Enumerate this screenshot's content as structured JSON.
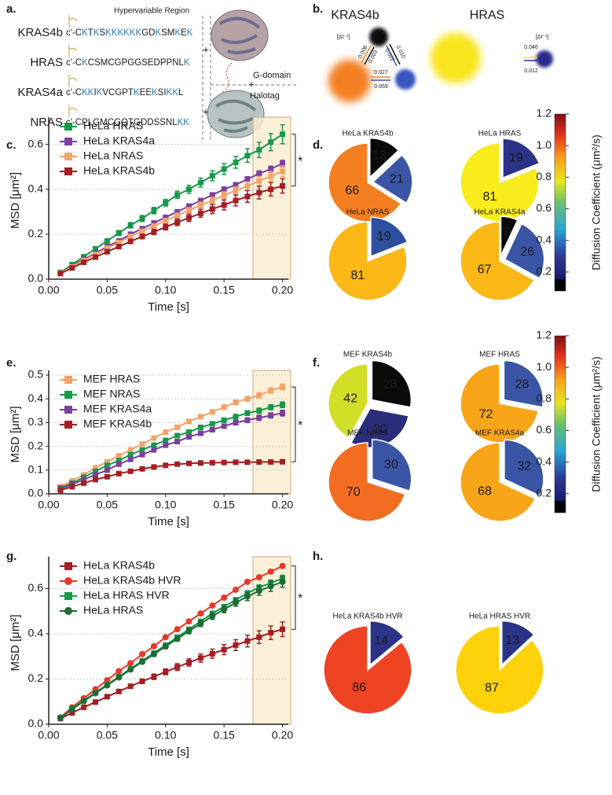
{
  "panel_labels": [
    "a.",
    "b.",
    "c.",
    "d.",
    "e.",
    "f.",
    "g.",
    "h."
  ],
  "panel_a": {
    "region_label": "Hypervariable Region",
    "rows": [
      {
        "name": "KRAS4b",
        "sequence": "c'-CKTKSKKKKKKGDKSMKEK"
      },
      {
        "name": "HRAS",
        "sequence": "c'-CKCSMCGPGGSEDPPNLK"
      },
      {
        "name": "KRAS4a",
        "sequence": "c'-CKKIKVCGPTKEEKSIKKL"
      },
      {
        "name": "NRAS",
        "sequence": "c'-CPLGMCGQTGDDSSNLKK"
      }
    ],
    "domains": [
      "G-domain",
      "Halotag"
    ]
  },
  "panel_b": {
    "titles": [
      "KRAS4b",
      "HRAS"
    ],
    "unit": "[Δt⁻¹]",
    "rates": [
      "0.008",
      "0.003",
      "0.022",
      "0.010",
      "0.027",
      "0.059",
      "0.046",
      "0.012"
    ]
  },
  "chart_data": [
    {
      "type": "line",
      "xlabel": "Time [s]",
      "ylabel": "MSD [μm²]",
      "annotation": "*",
      "grid": true,
      "xlim": [
        0,
        0.205
      ],
      "xticks": [
        {
          "value": 0,
          "label": "0.00"
        },
        {
          "value": 0.05,
          "label": "0.05"
        },
        {
          "value": 0.1,
          "label": "0.10"
        },
        {
          "value": 0.15,
          "label": "0.15"
        },
        {
          "value": 0.2,
          "label": "0.20"
        }
      ],
      "ylim": [
        0,
        0.7
      ],
      "yticks": [
        {
          "value": 0,
          "label": "0.0"
        },
        0.2,
        0.4,
        0.6
      ],
      "x": [
        0.01,
        0.02,
        0.03,
        0.04,
        0.05,
        0.06,
        0.07,
        0.08,
        0.09,
        0.1,
        0.11,
        0.12,
        0.13,
        0.14,
        0.15,
        0.16,
        0.17,
        0.18,
        0.19,
        0.2
      ],
      "series": [
        {
          "name": "HeLa HRAS",
          "color": "#16994a",
          "marker": "square",
          "values": [
            0.03,
            0.065,
            0.1,
            0.135,
            0.17,
            0.205,
            0.24,
            0.27,
            0.305,
            0.34,
            0.375,
            0.4,
            0.43,
            0.46,
            0.49,
            0.52,
            0.55,
            0.575,
            0.61,
            0.645
          ],
          "errors": [
            0.005,
            0.006,
            0.008,
            0.009,
            0.01,
            0.011,
            0.012,
            0.013,
            0.014,
            0.015,
            0.016,
            0.018,
            0.02,
            0.022,
            0.024,
            0.026,
            0.03,
            0.034,
            0.038,
            0.042
          ]
        },
        {
          "name": "HeLa KRAS4a",
          "color": "#7b3f9e",
          "marker": "square",
          "values": [
            0.028,
            0.058,
            0.088,
            0.115,
            0.145,
            0.17,
            0.2,
            0.225,
            0.25,
            0.275,
            0.3,
            0.325,
            0.35,
            0.375,
            0.4,
            0.42,
            0.445,
            0.47,
            0.49,
            0.515
          ],
          "errors": [
            0.003,
            0.003,
            0.004,
            0.004,
            0.005,
            0.005,
            0.006,
            0.006,
            0.007,
            0.007,
            0.008,
            0.008,
            0.009,
            0.009,
            0.01,
            0.01,
            0.011,
            0.012,
            0.013,
            0.014
          ]
        },
        {
          "name": "HeLa NRAS",
          "color": "#f4a46a",
          "marker": "square",
          "values": [
            0.027,
            0.055,
            0.083,
            0.11,
            0.138,
            0.163,
            0.19,
            0.213,
            0.237,
            0.26,
            0.283,
            0.306,
            0.33,
            0.35,
            0.373,
            0.395,
            0.415,
            0.437,
            0.458,
            0.48
          ],
          "errors": [
            0.003,
            0.004,
            0.004,
            0.005,
            0.006,
            0.006,
            0.007,
            0.008,
            0.009,
            0.01,
            0.011,
            0.012,
            0.013,
            0.014,
            0.015,
            0.016,
            0.018,
            0.02,
            0.022,
            0.024
          ]
        },
        {
          "name": "HeLa KRAS4b",
          "color": "#a31f24",
          "marker": "square",
          "values": [
            0.025,
            0.05,
            0.075,
            0.098,
            0.122,
            0.145,
            0.168,
            0.19,
            0.21,
            0.232,
            0.253,
            0.273,
            0.293,
            0.312,
            0.33,
            0.35,
            0.368,
            0.385,
            0.4,
            0.415
          ],
          "errors": [
            0.003,
            0.004,
            0.005,
            0.006,
            0.007,
            0.008,
            0.009,
            0.01,
            0.012,
            0.013,
            0.015,
            0.016,
            0.018,
            0.02,
            0.022,
            0.024,
            0.026,
            0.028,
            0.03,
            0.032
          ]
        }
      ]
    },
    {
      "type": "pie",
      "title": "HeLa KRAS4b",
      "values": [
        13,
        21,
        66
      ],
      "colors": [
        "#0a0a0a",
        "#3a55a5",
        "#f47f20"
      ]
    },
    {
      "type": "pie",
      "title": "HeLa HRAS",
      "values": [
        19,
        81
      ],
      "colors": [
        "#2b3388",
        "#f9ec1c"
      ]
    },
    {
      "type": "pie",
      "title": "HeLa NRAS",
      "values": [
        19,
        81
      ],
      "colors": [
        "#2e4ea0",
        "#fbb817"
      ]
    },
    {
      "type": "pie",
      "title": "HeLa KRAS4a",
      "values": [
        7,
        26,
        67
      ],
      "colors": [
        "#0a0a0a",
        "#3a55a5",
        "#fbb817"
      ]
    },
    {
      "type": "colorbar",
      "label": "Diffusion Coefficient (μm²/s)",
      "clim": [
        0.08,
        1.2
      ],
      "ticks": [
        0.2,
        0.4,
        0.6,
        0.8,
        {
          "value": 1,
          "label": "1.0"
        },
        1.2
      ]
    },
    {
      "type": "line",
      "xlabel": "Time [s]",
      "ylabel": "MSD [μm²]",
      "annotation": "*",
      "grid": true,
      "xlim": [
        0,
        0.205
      ],
      "xticks": [
        {
          "value": 0,
          "label": "0.00"
        },
        {
          "value": 0.05,
          "label": "0.05"
        },
        {
          "value": 0.1,
          "label": "0.10"
        },
        {
          "value": 0.15,
          "label": "0.15"
        },
        {
          "value": 0.2,
          "label": "0.20"
        }
      ],
      "ylim": [
        0,
        0.5
      ],
      "yticks": [
        {
          "value": 0,
          "label": "0.0"
        },
        0.1,
        0.2,
        0.3,
        0.4,
        0.5
      ],
      "x": [
        0.01,
        0.02,
        0.03,
        0.04,
        0.05,
        0.06,
        0.07,
        0.08,
        0.09,
        0.1,
        0.11,
        0.12,
        0.13,
        0.14,
        0.15,
        0.16,
        0.17,
        0.18,
        0.19,
        0.2
      ],
      "series": [
        {
          "name": "MEF HRAS",
          "color": "#f4a46a",
          "marker": "square",
          "values": [
            0.03,
            0.055,
            0.08,
            0.11,
            0.135,
            0.16,
            0.185,
            0.21,
            0.235,
            0.26,
            0.28,
            0.305,
            0.325,
            0.345,
            0.365,
            0.385,
            0.4,
            0.415,
            0.435,
            0.45
          ],
          "errors": [
            0.002,
            0.003,
            0.003,
            0.004,
            0.004,
            0.005,
            0.005,
            0.006,
            0.006,
            0.007,
            0.007,
            0.008,
            0.008,
            0.009,
            0.009,
            0.01,
            0.01,
            0.011,
            0.011,
            0.012
          ]
        },
        {
          "name": "MEF NRAS",
          "color": "#16994a",
          "marker": "square",
          "values": [
            0.025,
            0.045,
            0.07,
            0.095,
            0.12,
            0.14,
            0.165,
            0.185,
            0.205,
            0.225,
            0.245,
            0.26,
            0.28,
            0.295,
            0.31,
            0.325,
            0.34,
            0.35,
            0.365,
            0.375
          ],
          "errors": [
            0.002,
            0.003,
            0.003,
            0.004,
            0.004,
            0.005,
            0.005,
            0.006,
            0.006,
            0.007,
            0.007,
            0.008,
            0.008,
            0.009,
            0.009,
            0.01,
            0.01,
            0.011,
            0.011,
            0.012
          ]
        },
        {
          "name": "MEF KRAS4a",
          "color": "#7b3f9e",
          "marker": "square",
          "values": [
            0.02,
            0.04,
            0.06,
            0.08,
            0.1,
            0.125,
            0.145,
            0.165,
            0.185,
            0.205,
            0.22,
            0.24,
            0.255,
            0.27,
            0.285,
            0.3,
            0.31,
            0.32,
            0.33,
            0.34
          ],
          "errors": [
            0.002,
            0.003,
            0.003,
            0.004,
            0.004,
            0.005,
            0.005,
            0.006,
            0.006,
            0.007,
            0.007,
            0.008,
            0.008,
            0.009,
            0.009,
            0.01,
            0.01,
            0.011,
            0.011,
            0.012
          ]
        },
        {
          "name": "MEF KRAS4b",
          "color": "#a31f24",
          "marker": "square",
          "values": [
            0.015,
            0.03,
            0.045,
            0.06,
            0.072,
            0.085,
            0.095,
            0.105,
            0.113,
            0.12,
            0.125,
            0.128,
            0.13,
            0.131,
            0.132,
            0.133,
            0.133,
            0.134,
            0.134,
            0.135
          ],
          "errors": [
            0.001,
            0.002,
            0.002,
            0.002,
            0.003,
            0.003,
            0.003,
            0.003,
            0.004,
            0.004,
            0.004,
            0.004,
            0.004,
            0.005,
            0.005,
            0.005,
            0.005,
            0.005,
            0.005,
            0.005
          ]
        }
      ]
    },
    {
      "type": "pie",
      "title": "MEF KRAS4b",
      "values": [
        28,
        30,
        42
      ],
      "colors": [
        "#0a0a0a",
        "#2a2d7c",
        "#d3df26"
      ]
    },
    {
      "type": "pie",
      "title": "MEF HRAS",
      "values": [
        28,
        72
      ],
      "colors": [
        "#3a55a5",
        "#f9a51a"
      ]
    },
    {
      "type": "pie",
      "title": "MEF NRAS",
      "values": [
        30,
        70
      ],
      "colors": [
        "#3a55a5",
        "#f26d21"
      ]
    },
    {
      "type": "pie",
      "title": "MEF KRAS4a",
      "values": [
        32,
        68
      ],
      "colors": [
        "#3a55a5",
        "#f9a51a"
      ]
    },
    {
      "type": "colorbar",
      "label": "Diffusion Coefficient (μm²/s)",
      "clim": [
        0.08,
        1.2
      ],
      "ticks": [
        0.2,
        0.4,
        0.6,
        0.8,
        {
          "value": 1,
          "label": "1.0"
        },
        1.2
      ]
    },
    {
      "type": "line",
      "xlabel": "Time [s]",
      "ylabel": "MSD [μm²]",
      "annotation": "*",
      "grid": true,
      "xlim": [
        0,
        0.205
      ],
      "xticks": [
        {
          "value": 0,
          "label": "0.00"
        },
        {
          "value": 0.05,
          "label": "0.05"
        },
        {
          "value": 0.1,
          "label": "0.10"
        },
        {
          "value": 0.15,
          "label": "0.15"
        },
        {
          "value": 0.2,
          "label": "0.20"
        }
      ],
      "ylim": [
        0,
        0.72
      ],
      "yticks": [
        {
          "value": 0,
          "label": "0.0"
        },
        0.2,
        0.4,
        0.6
      ],
      "x": [
        0.01,
        0.02,
        0.03,
        0.04,
        0.05,
        0.06,
        0.07,
        0.08,
        0.09,
        0.1,
        0.11,
        0.12,
        0.13,
        0.14,
        0.15,
        0.16,
        0.17,
        0.18,
        0.19,
        0.2
      ],
      "series": [
        {
          "name": "HeLa KRAS4b",
          "color": "#a31f24",
          "marker": "square",
          "values": [
            0.025,
            0.05,
            0.075,
            0.098,
            0.122,
            0.145,
            0.168,
            0.19,
            0.21,
            0.232,
            0.253,
            0.273,
            0.293,
            0.312,
            0.33,
            0.35,
            0.368,
            0.385,
            0.405,
            0.42
          ],
          "errors": [
            0.003,
            0.004,
            0.005,
            0.006,
            0.007,
            0.008,
            0.009,
            0.01,
            0.012,
            0.013,
            0.015,
            0.016,
            0.018,
            0.02,
            0.022,
            0.024,
            0.026,
            0.028,
            0.03,
            0.032
          ]
        },
        {
          "name": "HeLa KRAS4b HVR",
          "color": "#e8382a",
          "marker": "circle",
          "values": [
            0.03,
            0.075,
            0.115,
            0.155,
            0.195,
            0.235,
            0.27,
            0.31,
            0.345,
            0.385,
            0.42,
            0.455,
            0.49,
            0.525,
            0.56,
            0.595,
            0.63,
            0.65,
            0.675,
            0.7
          ],
          "errors": [
            0.002,
            0.002,
            0.003,
            0.003,
            0.003,
            0.004,
            0.004,
            0.004,
            0.005,
            0.005,
            0.005,
            0.006,
            0.006,
            0.006,
            0.007,
            0.007,
            0.007,
            0.008,
            0.008,
            0.008
          ]
        },
        {
          "name": "HeLa HRAS HVR",
          "color": "#16994a",
          "marker": "square",
          "values": [
            0.028,
            0.068,
            0.105,
            0.14,
            0.175,
            0.21,
            0.245,
            0.28,
            0.315,
            0.35,
            0.385,
            0.42,
            0.455,
            0.49,
            0.52,
            0.55,
            0.58,
            0.605,
            0.625,
            0.645
          ],
          "errors": [
            0.003,
            0.003,
            0.004,
            0.004,
            0.005,
            0.005,
            0.006,
            0.006,
            0.007,
            0.007,
            0.008,
            0.008,
            0.009,
            0.009,
            0.01,
            0.01,
            0.011,
            0.012,
            0.013,
            0.014
          ]
        },
        {
          "name": "HeLa HRAS",
          "color": "#1f6b35",
          "marker": "circle",
          "values": [
            0.028,
            0.066,
            0.102,
            0.137,
            0.172,
            0.207,
            0.242,
            0.276,
            0.31,
            0.344,
            0.378,
            0.412,
            0.445,
            0.478,
            0.508,
            0.538,
            0.565,
            0.59,
            0.61,
            0.63
          ],
          "errors": [
            0.003,
            0.004,
            0.004,
            0.005,
            0.006,
            0.006,
            0.007,
            0.008,
            0.009,
            0.01,
            0.011,
            0.012,
            0.013,
            0.014,
            0.015,
            0.016,
            0.018,
            0.02,
            0.022,
            0.024
          ]
        }
      ]
    },
    {
      "type": "pie",
      "title": "HeLa KRAS4b HVR",
      "values": [
        14,
        86
      ],
      "colors": [
        "#2b3388",
        "#ef4423"
      ]
    },
    {
      "type": "pie",
      "title": "HeLa HRAS HVR",
      "values": [
        13,
        87
      ],
      "colors": [
        "#2b3388",
        "#fdd20a"
      ]
    }
  ]
}
